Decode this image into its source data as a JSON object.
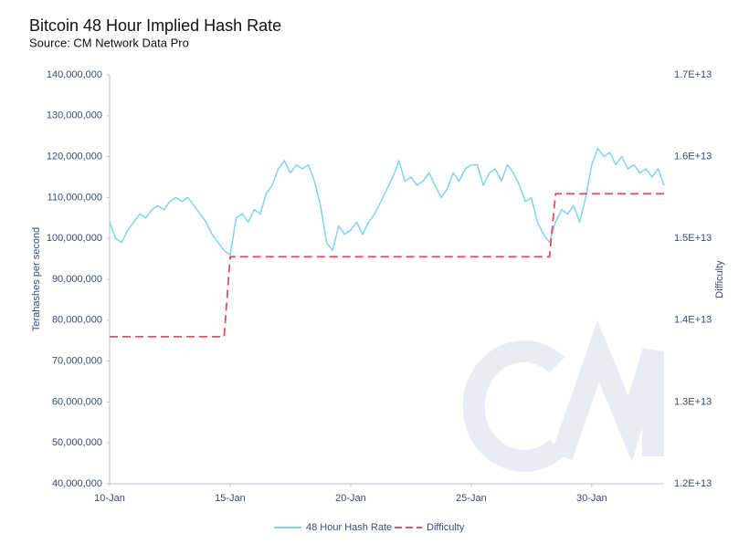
{
  "chart_data": {
    "type": "line",
    "title": "Bitcoin 48 Hour Implied Hash Rate",
    "subtitle": "Source: CM Network Data Pro",
    "y_label": "Terahashes per second",
    "y2_label": "Difficulty",
    "categories": [
      "10-Jan",
      null,
      null,
      null,
      null,
      null,
      null,
      null,
      null,
      null,
      null,
      null,
      null,
      null,
      null,
      null,
      null,
      null,
      null,
      null,
      "15-Jan",
      null,
      null,
      null,
      null,
      null,
      null,
      null,
      null,
      null,
      null,
      null,
      null,
      null,
      null,
      null,
      null,
      null,
      null,
      null,
      "20-Jan",
      null,
      null,
      null,
      null,
      null,
      null,
      null,
      null,
      null,
      null,
      null,
      null,
      null,
      null,
      null,
      null,
      null,
      null,
      null,
      "25-Jan",
      null,
      null,
      null,
      null,
      null,
      null,
      null,
      null,
      null,
      null,
      null,
      null,
      null,
      null,
      null,
      null,
      null,
      null,
      null,
      "30-Jan",
      null,
      null,
      null,
      null,
      null,
      null,
      null,
      null,
      null,
      null,
      null,
      null
    ],
    "series": [
      {
        "name": "48 Hour Hash Rate",
        "color": "#7fd3f5",
        "axis": "y",
        "dashed": false,
        "values": [
          104000000,
          100000000,
          99000000,
          102000000,
          104000000,
          106000000,
          105000000,
          107000000,
          108000000,
          107000000,
          109000000,
          110000000,
          109000000,
          110000000,
          108000000,
          106000000,
          104000000,
          101000000,
          99000000,
          97000000,
          96000000,
          105000000,
          106000000,
          104000000,
          107000000,
          106000000,
          111000000,
          113000000,
          117000000,
          119000000,
          116000000,
          118000000,
          117000000,
          118000000,
          114000000,
          108000000,
          99000000,
          97000000,
          103000000,
          101000000,
          102000000,
          104000000,
          101000000,
          104000000,
          106000000,
          109000000,
          112000000,
          115000000,
          119000000,
          114000000,
          115000000,
          113000000,
          114000000,
          116000000,
          113000000,
          110000000,
          112000000,
          116000000,
          114000000,
          117000000,
          118000000,
          118000000,
          113000000,
          116000000,
          117000000,
          114000000,
          118000000,
          116000000,
          113000000,
          109000000,
          110000000,
          104000000,
          101000000,
          99000000,
          104000000,
          107000000,
          106000000,
          108000000,
          104000000,
          110000000,
          118000000,
          122000000,
          120000000,
          121000000,
          118000000,
          120000000,
          117000000,
          118000000,
          116000000,
          117000000,
          115000000,
          117000000,
          113000000
        ]
      },
      {
        "name": "Difficulty",
        "color": "#e8505b",
        "axis": "y2",
        "dashed": true,
        "values": [
          13798000000000,
          13798000000000,
          13798000000000,
          13798000000000,
          13798000000000,
          13798000000000,
          13798000000000,
          13798000000000,
          13798000000000,
          13798000000000,
          13798000000000,
          13798000000000,
          13798000000000,
          13798000000000,
          13798000000000,
          13798000000000,
          13798000000000,
          13798000000000,
          13798000000000,
          13798000000000,
          14776000000000,
          14776000000000,
          14776000000000,
          14776000000000,
          14776000000000,
          14776000000000,
          14776000000000,
          14776000000000,
          14776000000000,
          14776000000000,
          14776000000000,
          14776000000000,
          14776000000000,
          14776000000000,
          14776000000000,
          14776000000000,
          14776000000000,
          14776000000000,
          14776000000000,
          14776000000000,
          14776000000000,
          14776000000000,
          14776000000000,
          14776000000000,
          14776000000000,
          14776000000000,
          14776000000000,
          14776000000000,
          14776000000000,
          14776000000000,
          14776000000000,
          14776000000000,
          14776000000000,
          14776000000000,
          14776000000000,
          14776000000000,
          14776000000000,
          14776000000000,
          14776000000000,
          14776000000000,
          14776000000000,
          14776000000000,
          14776000000000,
          14776000000000,
          14776000000000,
          14776000000000,
          14776000000000,
          14776000000000,
          14776000000000,
          14776000000000,
          14776000000000,
          14776000000000,
          14776000000000,
          14776000000000,
          15546000000000,
          15546000000000,
          15546000000000,
          15546000000000,
          15546000000000,
          15546000000000,
          15546000000000,
          15546000000000,
          15546000000000,
          15546000000000,
          15546000000000,
          15546000000000,
          15546000000000,
          15546000000000,
          15546000000000,
          15546000000000,
          15546000000000,
          15546000000000,
          15546000000000
        ]
      }
    ],
    "ylim": [
      40000000,
      140000000
    ],
    "yticks": [
      {
        "value": 40000000,
        "label": "40,000,000"
      },
      {
        "value": 50000000,
        "label": "50,000,000"
      },
      {
        "value": 60000000,
        "label": "60,000,000"
      },
      {
        "value": 70000000,
        "label": "70,000,000"
      },
      {
        "value": 80000000,
        "label": "80,000,000"
      },
      {
        "value": 90000000,
        "label": "90,000,000"
      },
      {
        "value": 100000000,
        "label": "100,000,000"
      },
      {
        "value": 110000000,
        "label": "110,000,000"
      },
      {
        "value": 120000000,
        "label": "120,000,000"
      },
      {
        "value": 130000000,
        "label": "130,000,000"
      },
      {
        "value": 140000000,
        "label": "140,000,000"
      }
    ],
    "y2lim": [
      12000000000000,
      17000000000000
    ],
    "y2ticks": [
      {
        "value": 12000000000000,
        "label": "1.2E+13"
      },
      {
        "value": 13000000000000,
        "label": "1.3E+13"
      },
      {
        "value": 14000000000000,
        "label": "1.4E+13"
      },
      {
        "value": 15000000000000,
        "label": "1.5E+13"
      },
      {
        "value": 16000000000000,
        "label": "1.6E+13"
      },
      {
        "value": 17000000000000,
        "label": "1.7E+13"
      }
    ],
    "grid": false,
    "legend": "bottom"
  }
}
